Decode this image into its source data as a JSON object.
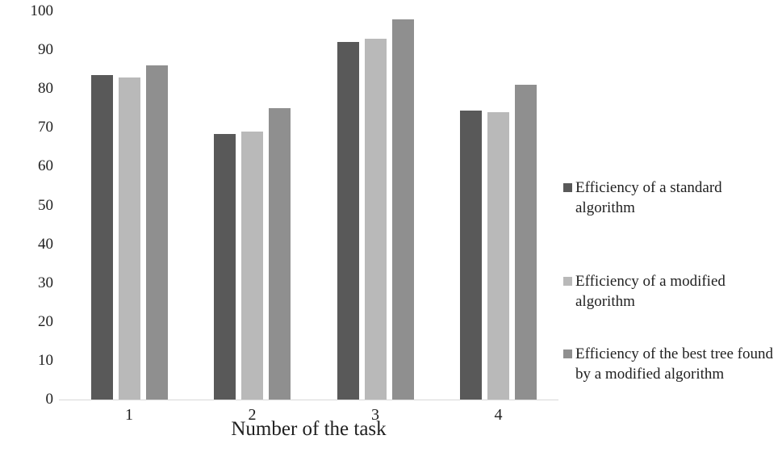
{
  "chart_data": {
    "type": "bar",
    "title": "",
    "xlabel": "Number of the task",
    "ylabel": "",
    "categories": [
      "1",
      "2",
      "3",
      "4"
    ],
    "series": [
      {
        "name": "Efficiency of a standard algorithm",
        "color": "#595959",
        "values": [
          83.5,
          68.5,
          92,
          74.5
        ]
      },
      {
        "name": "Efficiency of a modified algorithm",
        "color": "#b9b9b9",
        "values": [
          83,
          69,
          93,
          74
        ]
      },
      {
        "name": "Efficiency of the best tree found by a modified algorithm",
        "color": "#8f8f8f",
        "values": [
          86,
          75,
          98,
          81
        ]
      }
    ],
    "ylim": [
      0,
      100
    ],
    "yticks": [
      0,
      10,
      20,
      30,
      40,
      50,
      60,
      70,
      80,
      90,
      100
    ],
    "grid": false,
    "legend_position": "right",
    "legend": [
      {
        "lines": [
          "Efficiency of a standard algorithm"
        ],
        "color": "#595959"
      },
      {
        "lines": [
          "Efficiency of a modified",
          "algorithm"
        ],
        "color": "#b9b9b9"
      },
      {
        "lines": [
          "Efficiency of the best tree found",
          "by a modified algorithm"
        ],
        "color": "#8f8f8f"
      }
    ],
    "axis_line_color": "#d9d9d9",
    "text_color": "#1f1f1f"
  }
}
